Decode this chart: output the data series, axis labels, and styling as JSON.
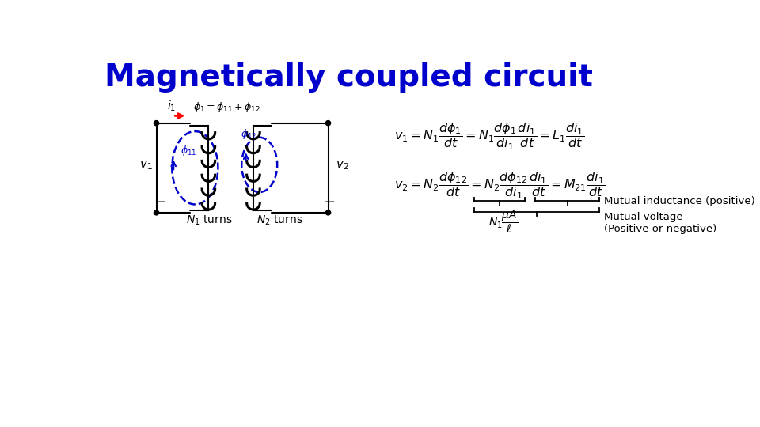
{
  "title": "Magnetically coupled circuit",
  "title_color": "#0000CC",
  "title_fontsize": 28,
  "bg_color": "#FFFFFF",
  "eq_color": "#000000",
  "label_mutual_inductance": "Mutual inductance (positive)",
  "label_mutual_voltage": "Mutual voltage\n(Positive or negative)",
  "circuit_color": "#000000",
  "flux_color": "#0000CC",
  "current_arrow_color": "#FF0000"
}
